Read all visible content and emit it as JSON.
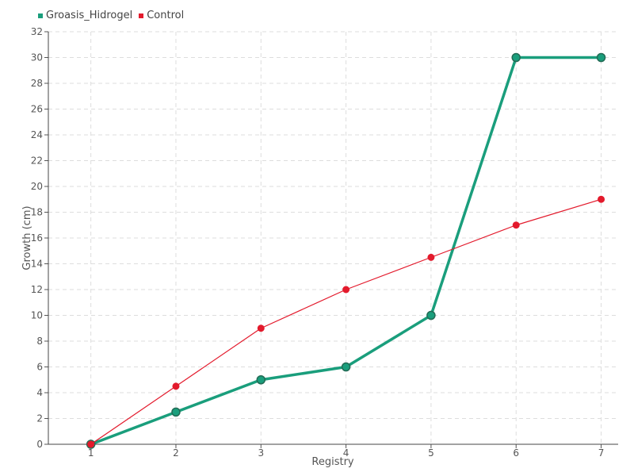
{
  "chart_data": {
    "type": "line",
    "x": [
      1,
      2,
      3,
      4,
      5,
      6,
      7
    ],
    "series": [
      {
        "name": "Groasis_Hidrogel",
        "color": "#1a9e7c",
        "values": [
          0,
          2.5,
          5,
          6,
          10,
          30,
          30
        ]
      },
      {
        "name": "Control",
        "color": "#e31a2c",
        "values": [
          0,
          4.5,
          9,
          12,
          14.5,
          17,
          19
        ]
      }
    ],
    "xlabel": "Registry",
    "ylabel": "Growth (cm)",
    "ylim": [
      0,
      32
    ],
    "yticks": [
      0,
      2,
      4,
      6,
      8,
      10,
      12,
      14,
      16,
      18,
      20,
      22,
      24,
      26,
      28,
      30,
      32
    ],
    "grid": true,
    "legend_position": "top-left"
  }
}
